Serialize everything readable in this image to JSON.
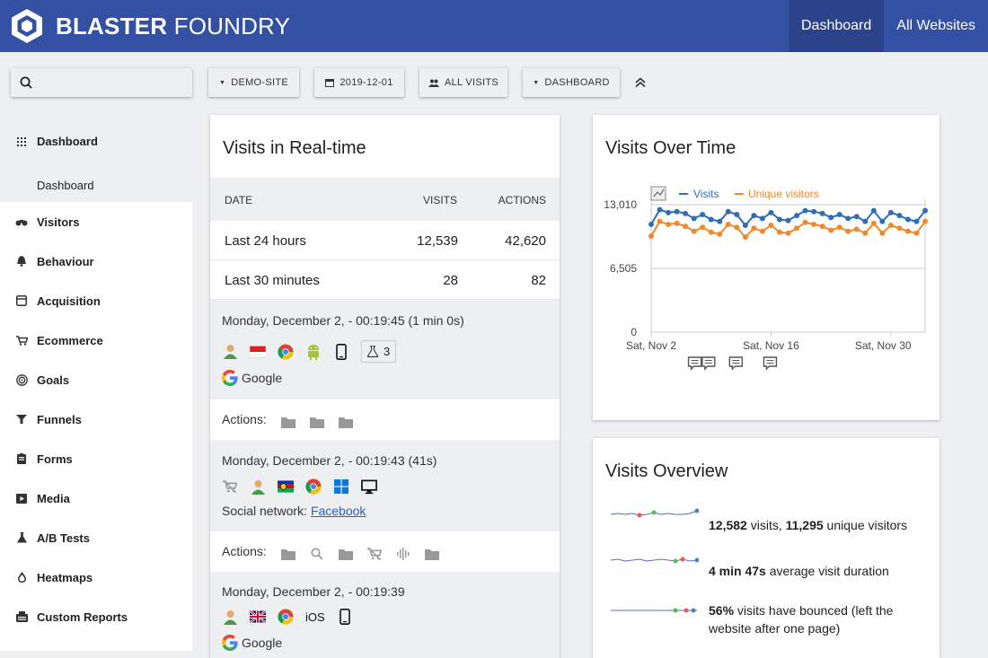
{
  "header": {
    "brand_bold": "BLASTER",
    "brand_light": "FOUNDRY",
    "nav": [
      {
        "label": "Dashboard",
        "active": true
      },
      {
        "label": "All Websites",
        "active": false
      }
    ],
    "color": "#3450a3"
  },
  "toolbar": {
    "search_placeholder": "",
    "site": "DEMO-SITE",
    "date": "2019-12-01",
    "segment": "ALL VISITS",
    "dashboard": "DASHBOARD"
  },
  "sidebar": {
    "items": [
      {
        "label": "Dashboard",
        "icon": "dashboard-grid-icon",
        "active": true
      },
      {
        "label": "Dashboard",
        "sub": true,
        "active": true
      },
      {
        "label": "Visitors",
        "icon": "binoculars-icon"
      },
      {
        "label": "Behaviour",
        "icon": "bell-icon"
      },
      {
        "label": "Acquisition",
        "icon": "window-icon"
      },
      {
        "label": "Ecommerce",
        "icon": "cart-icon"
      },
      {
        "label": "Goals",
        "icon": "target-icon"
      },
      {
        "label": "Funnels",
        "icon": "funnel-icon"
      },
      {
        "label": "Forms",
        "icon": "clipboard-icon"
      },
      {
        "label": "Media",
        "icon": "media-icon"
      },
      {
        "label": "A/B Tests",
        "icon": "flask-icon"
      },
      {
        "label": "Heatmaps",
        "icon": "drop-icon"
      },
      {
        "label": "Custom Reports",
        "icon": "report-icon"
      }
    ]
  },
  "realtime": {
    "title": "Visits in Real-time",
    "columns": [
      "DATE",
      "VISITS",
      "ACTIONS"
    ],
    "rows": [
      {
        "label": "Last 24 hours",
        "visits": "12,539",
        "actions": "42,620"
      },
      {
        "label": "Last 30 minutes",
        "visits": "28",
        "actions": "82"
      }
    ],
    "visits": [
      {
        "when": "Monday, December 2, - 00:19:45 (1 min 0s)",
        "experiments": "3",
        "referrer_label": "Google",
        "actions_label": "Actions:"
      },
      {
        "when": "Monday, December 2, - 00:19:43 (41s)",
        "referrer_prefix": "Social network:",
        "referrer_link": "Facebook",
        "actions_label": "Actions:"
      },
      {
        "when": "Monday, December 2, - 00:19:39",
        "os": "iOS",
        "referrer_label": "Google"
      }
    ]
  },
  "visits_over_time": {
    "title": "Visits Over Time",
    "legend_visits": "Visits",
    "legend_unique": "Unique visitors"
  },
  "chart_data": {
    "type": "line",
    "x_ticks": [
      "Sat, Nov 2",
      "Sat, Nov 16",
      "Sat, Nov 30"
    ],
    "y_ticks": [
      "13,010",
      "6,505",
      "0"
    ],
    "ylim": [
      0,
      13010
    ],
    "legend_position": "top",
    "grid": true,
    "series": [
      {
        "name": "Visits",
        "color": "#2f6db5",
        "values": [
          11000,
          12500,
          12200,
          12300,
          12100,
          11600,
          12000,
          11500,
          11300,
          12300,
          12000,
          10900,
          11900,
          11600,
          12200,
          11500,
          11400,
          11900,
          12400,
          12300,
          12100,
          11700,
          12000,
          11600,
          11800,
          11300,
          12400,
          11300,
          12200,
          11900,
          11500,
          11300,
          12400
        ]
      },
      {
        "name": "Unique visitors",
        "color": "#f0892d",
        "values": [
          9800,
          11300,
          11000,
          11100,
          10800,
          10300,
          10700,
          10200,
          10000,
          11000,
          10700,
          9700,
          10600,
          10300,
          10900,
          10200,
          10100,
          10600,
          11200,
          11000,
          10800,
          10400,
          10700,
          10300,
          10500,
          10100,
          11100,
          10100,
          10900,
          10600,
          10300,
          10100,
          11300
        ]
      }
    ]
  },
  "overview": {
    "title": "Visits Overview",
    "visits": "12,582",
    "visits_suffix": " visits, ",
    "unique": "11,295",
    "unique_suffix": " unique visitors",
    "duration": "4 min 47s",
    "duration_suffix": " average visit duration",
    "bounce": "56%",
    "bounce_suffix": " visits have bounced (left the website after one page)"
  }
}
